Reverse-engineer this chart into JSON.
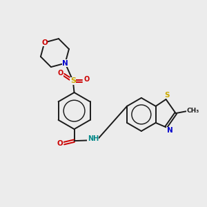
{
  "bg_color": "#ececec",
  "bond_color": "#1a1a1a",
  "colors": {
    "C": "#1a1a1a",
    "N": "#0000cc",
    "O": "#cc0000",
    "S": "#ccaa00",
    "H": "#008888"
  },
  "figsize": [
    3.0,
    3.0
  ],
  "dpi": 100,
  "lw": 1.4,
  "fontsize": 7.5
}
